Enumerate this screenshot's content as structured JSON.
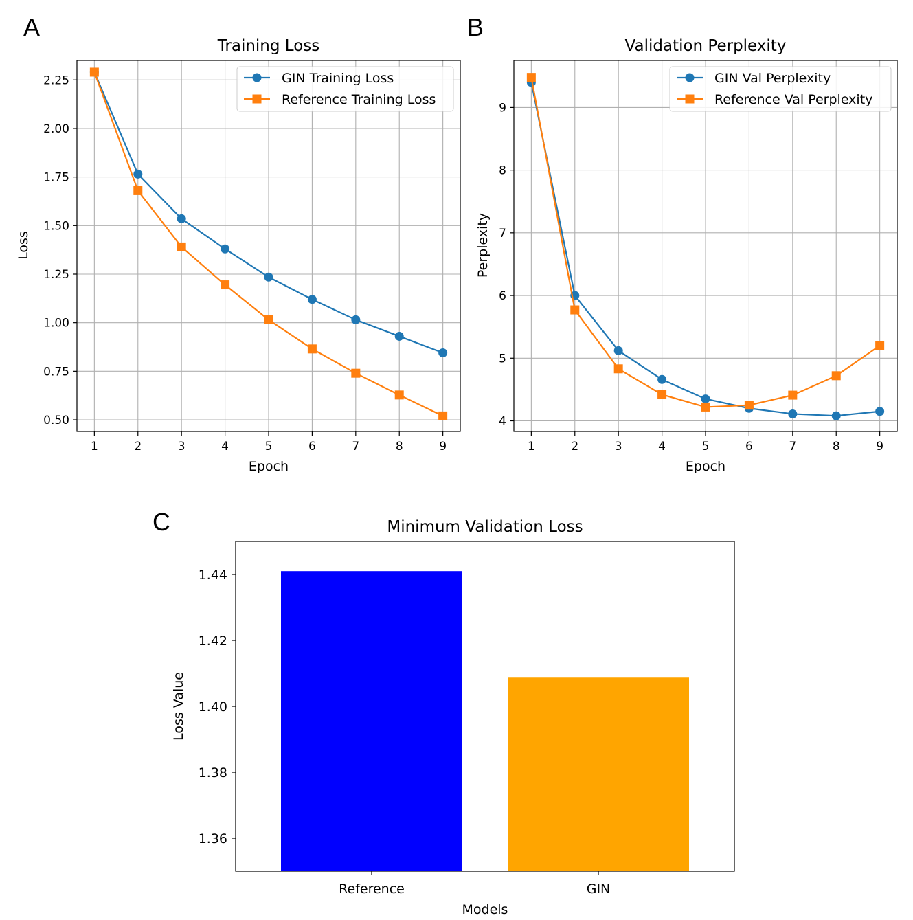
{
  "panel_labels": [
    "A",
    "B",
    "C"
  ],
  "chart_data": [
    {
      "panel": "A",
      "type": "line",
      "title": "Training Loss",
      "xlabel": "Epoch",
      "ylabel": "Loss",
      "x": [
        1,
        2,
        3,
        4,
        5,
        6,
        7,
        8,
        9
      ],
      "xlim": [
        0.6,
        9.4
      ],
      "ylim": [
        0.44,
        2.35
      ],
      "yticks": [
        0.5,
        0.75,
        1.0,
        1.25,
        1.5,
        1.75,
        2.0,
        2.25
      ],
      "ytick_labels": [
        "0.50",
        "0.75",
        "1.00",
        "1.25",
        "1.50",
        "1.75",
        "2.00",
        "2.25"
      ],
      "grid": true,
      "legend_position": "upper right",
      "series": [
        {
          "name": "GIN Training Loss",
          "color": "#1f77b4",
          "marker": "circle",
          "values": [
            2.29,
            1.765,
            1.535,
            1.38,
            1.235,
            1.12,
            1.015,
            0.93,
            0.845
          ]
        },
        {
          "name": "Reference Training Loss",
          "color": "#ff7f0e",
          "marker": "square",
          "values": [
            2.29,
            1.68,
            1.39,
            1.195,
            1.015,
            0.865,
            0.74,
            0.628,
            0.52
          ]
        }
      ]
    },
    {
      "panel": "B",
      "type": "line",
      "title": "Validation Perplexity",
      "xlabel": "Epoch",
      "ylabel": "Perplexity",
      "x": [
        1,
        2,
        3,
        4,
        5,
        6,
        7,
        8,
        9
      ],
      "xlim": [
        0.6,
        9.4
      ],
      "ylim": [
        3.83,
        9.75
      ],
      "yticks": [
        4,
        5,
        6,
        7,
        8,
        9
      ],
      "ytick_labels": [
        "4",
        "5",
        "6",
        "7",
        "8",
        "9"
      ],
      "grid": true,
      "legend_position": "upper right",
      "series": [
        {
          "name": "GIN Val Perplexity",
          "color": "#1f77b4",
          "marker": "circle",
          "values": [
            9.4,
            6.0,
            5.12,
            4.66,
            4.35,
            4.2,
            4.11,
            4.08,
            4.15
          ]
        },
        {
          "name": "Reference Val Perplexity",
          "color": "#ff7f0e",
          "marker": "square",
          "values": [
            9.48,
            5.77,
            4.83,
            4.42,
            4.22,
            4.25,
            4.41,
            4.72,
            5.2
          ]
        }
      ]
    },
    {
      "panel": "C",
      "type": "bar",
      "title": "Minimum Validation Loss",
      "xlabel": "Models",
      "ylabel": "Loss Value",
      "categories": [
        "Reference",
        "GIN"
      ],
      "values": [
        1.441,
        1.4087
      ],
      "colors": [
        "#0000ff",
        "#ffa500"
      ],
      "ylim": [
        1.35,
        1.45
      ],
      "yticks": [
        1.36,
        1.38,
        1.4,
        1.42,
        1.44
      ],
      "ytick_labels": [
        "1.36",
        "1.38",
        "1.40",
        "1.42",
        "1.44"
      ],
      "grid": false
    }
  ]
}
